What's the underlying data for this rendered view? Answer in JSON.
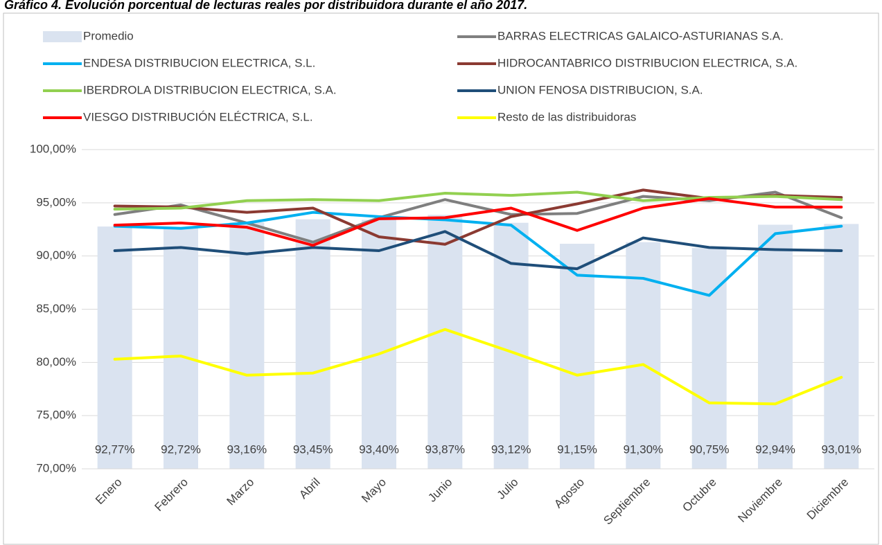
{
  "chart_data": {
    "type": "bar_line",
    "title": "Gráfico 4. Evolución porcentual de lecturas reales por distribuidora durante el año 2017.",
    "categories": [
      "Enero",
      "Febrero",
      "Marzo",
      "Abril",
      "Mayo",
      "Junio",
      "Julio",
      "Agosto",
      "Septiembre",
      "Octubre",
      "Noviembre",
      "Diciembre"
    ],
    "bars": {
      "name": "Promedio",
      "color": "#dae3f0",
      "values": [
        92.77,
        92.72,
        93.16,
        93.45,
        93.4,
        93.87,
        93.12,
        91.15,
        91.3,
        90.75,
        92.94,
        93.01
      ],
      "value_labels": [
        "92,77%",
        "92,72%",
        "93,16%",
        "93,45%",
        "93,40%",
        "93,87%",
        "93,12%",
        "91,15%",
        "91,30%",
        "90,75%",
        "92,94%",
        "93,01%"
      ]
    },
    "series": [
      {
        "name": "BARRAS ELECTRICAS GALAICO-ASTURIANAS S.A.",
        "color": "#7f7f7f",
        "values": [
          93.9,
          94.8,
          93.1,
          91.3,
          93.6,
          95.3,
          93.9,
          94.0,
          95.6,
          95.2,
          96.0,
          93.6
        ]
      },
      {
        "name": "ENDESA DISTRIBUCION ELECTRICA, S.L.",
        "color": "#00b0f0",
        "values": [
          92.8,
          92.6,
          93.1,
          94.1,
          93.7,
          93.4,
          92.9,
          88.2,
          87.9,
          86.3,
          92.1,
          92.8
        ]
      },
      {
        "name": "HIDROCANTABRICO DISTRIBUCION ELECTRICA, S.A.",
        "color": "#8b3a32",
        "values": [
          94.7,
          94.6,
          94.1,
          94.5,
          91.8,
          91.1,
          93.7,
          94.9,
          96.2,
          95.4,
          95.7,
          95.5
        ]
      },
      {
        "name": "IBERDROLA DISTRIBUCION ELECTRICA, S.A.",
        "color": "#92d050",
        "values": [
          94.4,
          94.5,
          95.2,
          95.3,
          95.2,
          95.9,
          95.7,
          96.0,
          95.2,
          95.5,
          95.6,
          95.3
        ]
      },
      {
        "name": "UNION FENOSA DISTRIBUCION, S.A.",
        "color": "#1f4e79",
        "values": [
          90.5,
          90.8,
          90.2,
          90.8,
          90.5,
          92.3,
          89.3,
          88.8,
          91.7,
          90.8,
          90.6,
          90.5
        ]
      },
      {
        "name": "VIESGO DISTRIBUCIÓN ELÉCTRICA, S.L.",
        "color": "#ff0000",
        "values": [
          92.9,
          93.1,
          92.7,
          91.0,
          93.5,
          93.6,
          94.5,
          92.4,
          94.5,
          95.4,
          94.6,
          94.6
        ]
      },
      {
        "name": "Resto de las distribuidoras",
        "color": "#ffff00",
        "values": [
          80.3,
          80.6,
          78.8,
          79.0,
          80.8,
          83.1,
          81.0,
          78.8,
          79.8,
          76.2,
          76.1,
          78.6
        ]
      }
    ],
    "ylim": [
      70,
      100
    ],
    "yticks": [
      {
        "value": 70,
        "label": "70,00%"
      },
      {
        "value": 75,
        "label": "75,00%"
      },
      {
        "value": 80,
        "label": "80,00%"
      },
      {
        "value": 85,
        "label": "85,00%"
      },
      {
        "value": 90,
        "label": "90,00%"
      },
      {
        "value": 95,
        "label": "95,00%"
      },
      {
        "value": 100,
        "label": "100,00%"
      }
    ],
    "grid": true
  }
}
